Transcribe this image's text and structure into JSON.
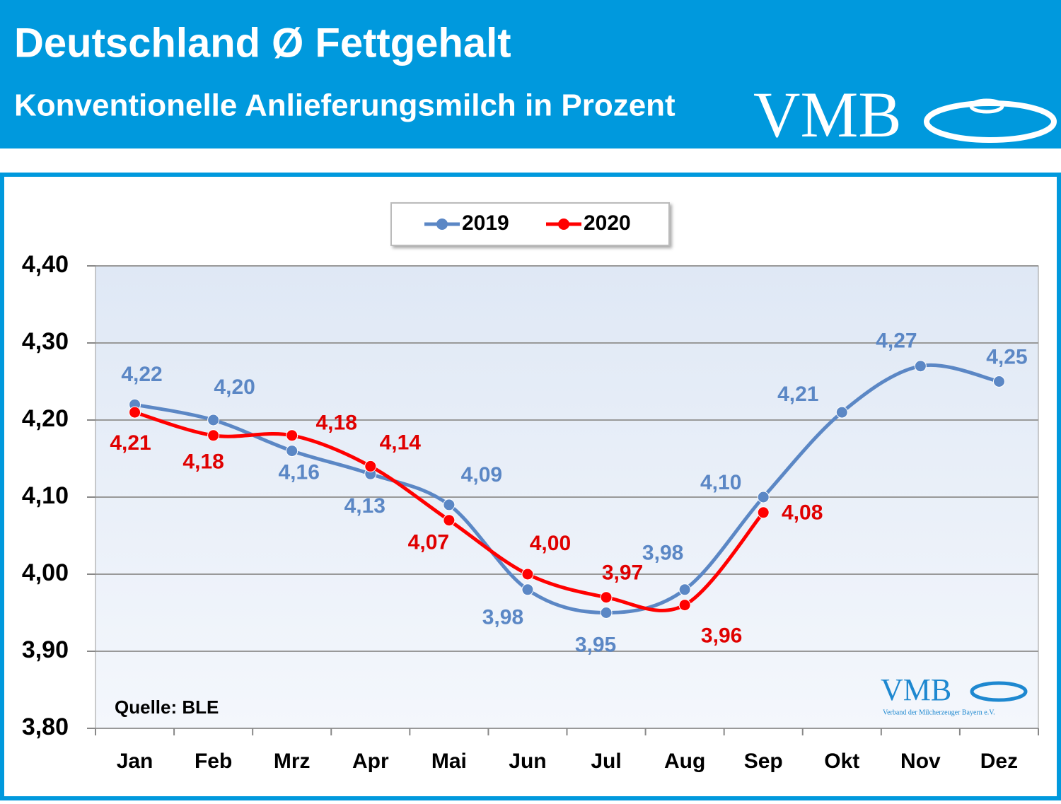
{
  "chart_data": {
    "type": "line",
    "title": "Deutschland Ø Fettgehalt",
    "subtitle": "Konventionelle Anlieferungsmilch in Prozent",
    "logo": "VMB",
    "logo_small": "VMB",
    "logo_caption": "Verband der Milcherzeuger Bayern e.V.",
    "annotation": "Quelle: BLE",
    "categories": [
      "Jan",
      "Feb",
      "Mrz",
      "Apr",
      "Mai",
      "Jun",
      "Jul",
      "Aug",
      "Sep",
      "Okt",
      "Nov",
      "Dez"
    ],
    "series": [
      {
        "name": "2019",
        "color": "#5b87c5",
        "values": [
          4.22,
          4.2,
          4.16,
          4.13,
          4.09,
          3.98,
          3.95,
          3.98,
          4.1,
          4.21,
          4.27,
          4.25
        ],
        "value_labels": [
          "4,22",
          "4,20",
          "4,16",
          "4,13",
          "4,09",
          "3,98",
          "3,95",
          "3,98",
          "4,10",
          "4,21",
          "4,27",
          "4,25"
        ]
      },
      {
        "name": "2020",
        "color": "#ff0000",
        "values": [
          4.21,
          4.18,
          4.18,
          4.14,
          4.07,
          4.0,
          3.97,
          3.96,
          4.08,
          null,
          null,
          null
        ],
        "value_labels": [
          "4,21",
          "4,18",
          "4,18",
          "4,14",
          "4,07",
          "4,00",
          "3,97",
          "3,96",
          "4,08",
          null,
          null,
          null
        ]
      }
    ],
    "ylim": [
      3.8,
      4.4
    ],
    "yticks": [
      {
        "value": 3.8,
        "label": "3,80"
      },
      {
        "value": 3.9,
        "label": "3,90"
      },
      {
        "value": 4.0,
        "label": "4,00"
      },
      {
        "value": 4.1,
        "label": "4,10"
      },
      {
        "value": 4.2,
        "label": "4,20"
      },
      {
        "value": 4.3,
        "label": "4,30"
      },
      {
        "value": 4.4,
        "label": "4,40"
      }
    ],
    "grid": true,
    "legend": "top"
  }
}
